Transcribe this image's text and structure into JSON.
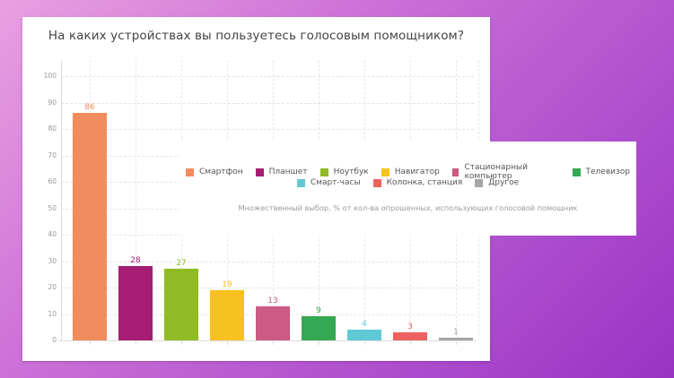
{
  "title": "На каких устройствах вы пользуетесь голосовым помощником?",
  "note": "Множественный выбор, % от кол-ва опрошенных, использующих голосовой помощник",
  "legend": {
    "row1": [
      {
        "label": "Смартфон",
        "color": "#f28c5e"
      },
      {
        "label": "Планшет",
        "color": "#a61e73"
      },
      {
        "label": "Ноутбук",
        "color": "#8fbc24"
      },
      {
        "label": "Навигатор",
        "color": "#f7c11f"
      },
      {
        "label": "Стационарный компьютер",
        "color": "#cc5a84"
      },
      {
        "label": "Телевизор",
        "color": "#34a853"
      }
    ],
    "row2": [
      {
        "label": "Смарт-часы",
        "color": "#5fcad6"
      },
      {
        "label": "Колонка, станция",
        "color": "#ee6161"
      },
      {
        "label": "Другое",
        "color": "#a6a6a6"
      }
    ]
  },
  "y_ticks": [
    "0",
    "10",
    "20",
    "30",
    "40",
    "50",
    "60",
    "70",
    "80",
    "90",
    "100"
  ],
  "chart_data": {
    "type": "bar",
    "title": "На каких устройствах вы пользуетесь голосовым помощником?",
    "subtitle": "Множественный выбор, % от кол-ва опрошенных, использующих голосовой помощник",
    "xlabel": "",
    "ylabel": "",
    "ylim": [
      0,
      100
    ],
    "grid": true,
    "legend_position": "overlay-right",
    "categories": [
      "Смартфон",
      "Планшет",
      "Ноутбук",
      "Навигатор",
      "Стационарный компьютер",
      "Телевизор",
      "Смарт-часы",
      "Колонка, станция",
      "Другое"
    ],
    "values": [
      86,
      28,
      27,
      19,
      13,
      9,
      4,
      3,
      1
    ],
    "colors": [
      "#f28c5e",
      "#a61e73",
      "#8fbc24",
      "#f7c11f",
      "#cc5a84",
      "#34a853",
      "#5fcad6",
      "#ee6161",
      "#a6a6a6"
    ],
    "labels": [
      "86",
      "28",
      "27",
      "19",
      "13",
      "9",
      "4",
      "3",
      "1"
    ]
  }
}
